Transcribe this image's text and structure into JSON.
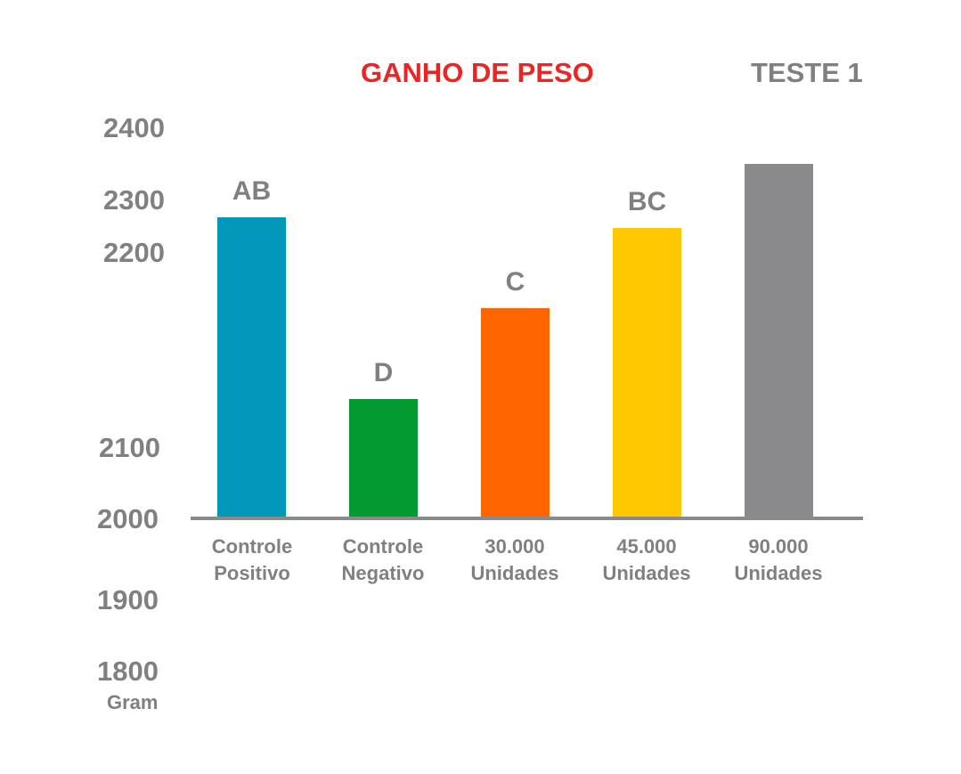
{
  "chart_data": {
    "type": "bar",
    "title": "GANHO DE PESO",
    "subtitle": "TESTE 1",
    "y_unit": "Gram",
    "yticks": [
      "2400",
      "2300",
      "2200",
      "2100",
      "2000",
      "1900",
      "1800"
    ],
    "categories": [
      {
        "line1": "Controle",
        "line2": "Positivo"
      },
      {
        "line1": "Controle",
        "line2": "Negativo"
      },
      {
        "line1": "30.000",
        "line2": "Unidades"
      },
      {
        "line1": "45.000",
        "line2": "Unidades"
      },
      {
        "line1": "90.000",
        "line2": "Unidades"
      }
    ],
    "values": [
      2280,
      2110,
      2195,
      2270,
      2330
    ],
    "significance_labels": [
      "AB",
      "D",
      "C",
      "BC",
      ""
    ],
    "colors": [
      "#0097b9",
      "#039a30",
      "#ff6400",
      "#ffc800",
      "#8a8a8c"
    ],
    "text_color": "#808080",
    "title_color": "#ec2424",
    "grid": false,
    "legend": "none"
  }
}
